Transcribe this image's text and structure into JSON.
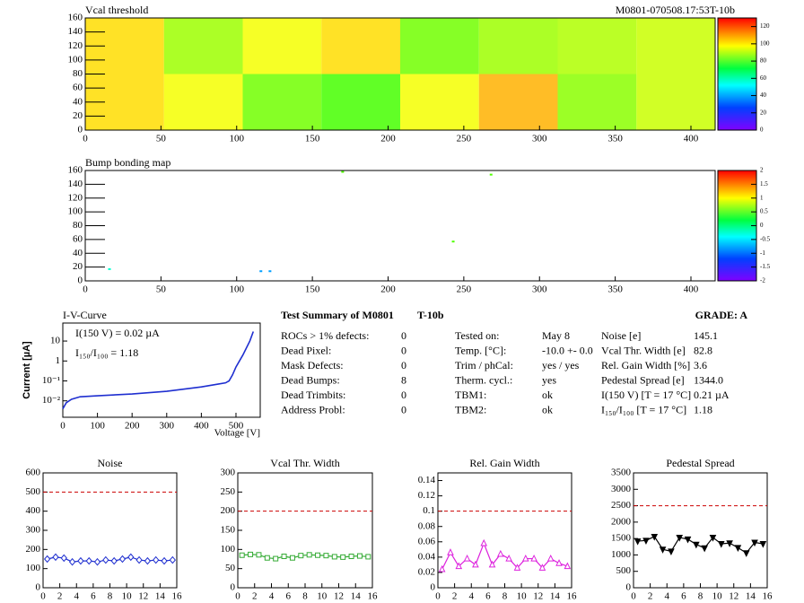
{
  "chart_data": [
    {
      "type": "heatmap",
      "title": "Vcal threshold",
      "subtitle": "M0801-070508.17:53T-10b",
      "xlim": [
        0,
        416
      ],
      "xticks": [
        0,
        50,
        100,
        150,
        200,
        250,
        300,
        350,
        400
      ],
      "ylim": [
        0,
        160
      ],
      "yticks": [
        0,
        20,
        40,
        60,
        80,
        100,
        120,
        140,
        160
      ],
      "z": [
        [
          105,
          100,
          85,
          80,
          100,
          110,
          88,
          95
        ],
        [
          105,
          90,
          100,
          105,
          85,
          90,
          92,
          95
        ]
      ],
      "zlim": [
        0,
        130
      ],
      "zticks": [
        0,
        20,
        40,
        60,
        80,
        100,
        120
      ]
    },
    {
      "type": "scatter",
      "title": "Bump bonding map",
      "xlim": [
        0,
        416
      ],
      "xticks": [
        0,
        50,
        100,
        150,
        200,
        250,
        300,
        350,
        400
      ],
      "ylim": [
        0,
        160
      ],
      "yticks": [
        0,
        20,
        40,
        60,
        80,
        100,
        120,
        140,
        160
      ],
      "x": [
        170,
        268,
        243,
        16,
        116,
        122
      ],
      "y": [
        158,
        154,
        57,
        17,
        14,
        14
      ],
      "z": [
        0.5,
        0.5,
        0.5,
        -0.5,
        -1,
        -1
      ],
      "zlim": [
        -2,
        2
      ],
      "zticks": [
        -2,
        -1.5,
        -1,
        -0.5,
        0,
        0.5,
        1,
        1.5,
        2
      ]
    },
    {
      "type": "line",
      "title": "I-V-Curve",
      "annotations": [
        "I(150 V) = 0.02 µA",
        "I₁₅₀/I₁₀₀ =  1.18"
      ],
      "xlabel": "Voltage [V]",
      "ylabel": "Current [µA]",
      "log_y": true,
      "color": "#1f2fd0",
      "x": [
        0,
        10,
        25,
        50,
        100,
        200,
        300,
        400,
        450,
        470,
        480,
        490,
        500,
        520,
        540,
        550
      ],
      "values": [
        0.004,
        0.008,
        0.012,
        0.016,
        0.018,
        0.022,
        0.03,
        0.05,
        0.07,
        0.08,
        0.1,
        0.2,
        0.5,
        2,
        10,
        30
      ],
      "xlim": [
        0,
        570
      ],
      "xticks": [
        0,
        100,
        200,
        300,
        400,
        500
      ],
      "ylim": [
        0.0015,
        80
      ],
      "yticks": [
        {
          "value": 0.01,
          "label": "10⁻²"
        },
        {
          "value": 0.1,
          "label": "10⁻¹"
        },
        1,
        10
      ]
    },
    {
      "type": "line",
      "title": "Noise",
      "color": "#1f2fd0",
      "marker": "diamond",
      "filled": false,
      "limit": 500,
      "x": [
        0.5,
        1.5,
        2.5,
        3.5,
        4.5,
        5.5,
        6.5,
        7.5,
        8.5,
        9.5,
        10.5,
        11.5,
        12.5,
        13.5,
        14.5,
        15.5
      ],
      "values": [
        150,
        160,
        155,
        135,
        140,
        140,
        135,
        145,
        140,
        150,
        160,
        145,
        140,
        145,
        140,
        145
      ],
      "xlim": [
        0,
        16
      ],
      "xticks": [
        0,
        2,
        4,
        6,
        8,
        10,
        12,
        14,
        16
      ],
      "ylim": [
        0,
        600
      ],
      "yticks": [
        0,
        100,
        200,
        300,
        400,
        500,
        600
      ]
    },
    {
      "type": "line",
      "title": "Vcal Thr. Width",
      "color": "#33aa33",
      "marker": "square",
      "filled": false,
      "limit": 200,
      "x": [
        0.5,
        1.5,
        2.5,
        3.5,
        4.5,
        5.5,
        6.5,
        7.5,
        8.5,
        9.5,
        10.5,
        11.5,
        12.5,
        13.5,
        14.5,
        15.5
      ],
      "values": [
        85,
        87,
        86,
        78,
        76,
        82,
        78,
        84,
        86,
        85,
        84,
        81,
        80,
        82,
        83,
        81
      ],
      "xlim": [
        0,
        16
      ],
      "xticks": [
        0,
        2,
        4,
        6,
        8,
        10,
        12,
        14,
        16
      ],
      "ylim": [
        0,
        300
      ],
      "yticks": [
        0,
        50,
        100,
        150,
        200,
        250,
        300
      ]
    },
    {
      "type": "line",
      "title": "Rel. Gain Width",
      "color": "#dd22dd",
      "marker": "triangle",
      "filled": false,
      "limit": 0.1,
      "x": [
        0.5,
        1.5,
        2.5,
        3.5,
        4.5,
        5.5,
        6.5,
        7.5,
        8.5,
        9.5,
        10.5,
        11.5,
        12.5,
        13.5,
        14.5,
        15.5
      ],
      "values": [
        0.024,
        0.046,
        0.028,
        0.038,
        0.03,
        0.058,
        0.03,
        0.044,
        0.038,
        0.026,
        0.038,
        0.038,
        0.026,
        0.038,
        0.032,
        0.028
      ],
      "xlim": [
        0,
        16
      ],
      "xticks": [
        0,
        2,
        4,
        6,
        8,
        10,
        12,
        14,
        16
      ],
      "ylim": [
        0,
        0.15
      ],
      "yticks": [
        0,
        0.02,
        0.04,
        0.06,
        0.08,
        0.1,
        0.12,
        0.14
      ]
    },
    {
      "type": "line",
      "title": "Pedestal Spread",
      "color": "#000000",
      "marker": "triangle-down",
      "filled": true,
      "limit": 2500,
      "x": [
        0.5,
        1.5,
        2.5,
        3.5,
        4.5,
        5.5,
        6.5,
        7.5,
        8.5,
        9.5,
        10.5,
        11.5,
        12.5,
        13.5,
        14.5,
        15.5
      ],
      "values": [
        1420,
        1440,
        1560,
        1170,
        1110,
        1530,
        1480,
        1320,
        1210,
        1530,
        1340,
        1360,
        1220,
        1060,
        1380,
        1340
      ],
      "xlim": [
        0,
        16
      ],
      "xticks": [
        0,
        2,
        4,
        6,
        8,
        10,
        12,
        14,
        16
      ],
      "ylim": [
        0,
        3500
      ],
      "yticks": [
        0,
        500,
        1000,
        1500,
        2000,
        2500,
        3000,
        3500
      ]
    }
  ],
  "summary": {
    "title": "Test Summary of M0801",
    "tag": "T-10b",
    "grade": "GRADE:  A",
    "left": [
      [
        "ROCs > 1% defects:",
        0
      ],
      [
        "Dead Pixel:",
        0
      ],
      [
        "Mask Defects:",
        0
      ],
      [
        "Dead Bumps:",
        8
      ],
      [
        "Dead Trimbits:",
        0
      ],
      [
        "Address Probl:",
        0
      ]
    ],
    "middle": [
      [
        "Tested on:",
        "May 8"
      ],
      [
        "Temp. [°C]:",
        "-10.0 +- 0.0"
      ],
      [
        "Trim / phCal:",
        "yes / yes"
      ],
      [
        "Therm. cycl.:",
        "yes"
      ],
      [
        "TBM1:",
        "ok"
      ],
      [
        "TBM2:",
        "ok"
      ]
    ],
    "right": [
      [
        "Noise [e]",
        "145.1"
      ],
      [
        "Vcal Thr. Width [e]",
        "82.8"
      ],
      [
        "Rel. Gain Width [%]",
        "3.6"
      ],
      [
        "Pedestal Spread [e]",
        "1344.0"
      ],
      [
        "I(150 V) [T = 17 °C]",
        "0.21 µA"
      ],
      [
        "I₁₅₀/I₁₀₀  [T = 17 °C]",
        "1.18"
      ]
    ]
  }
}
